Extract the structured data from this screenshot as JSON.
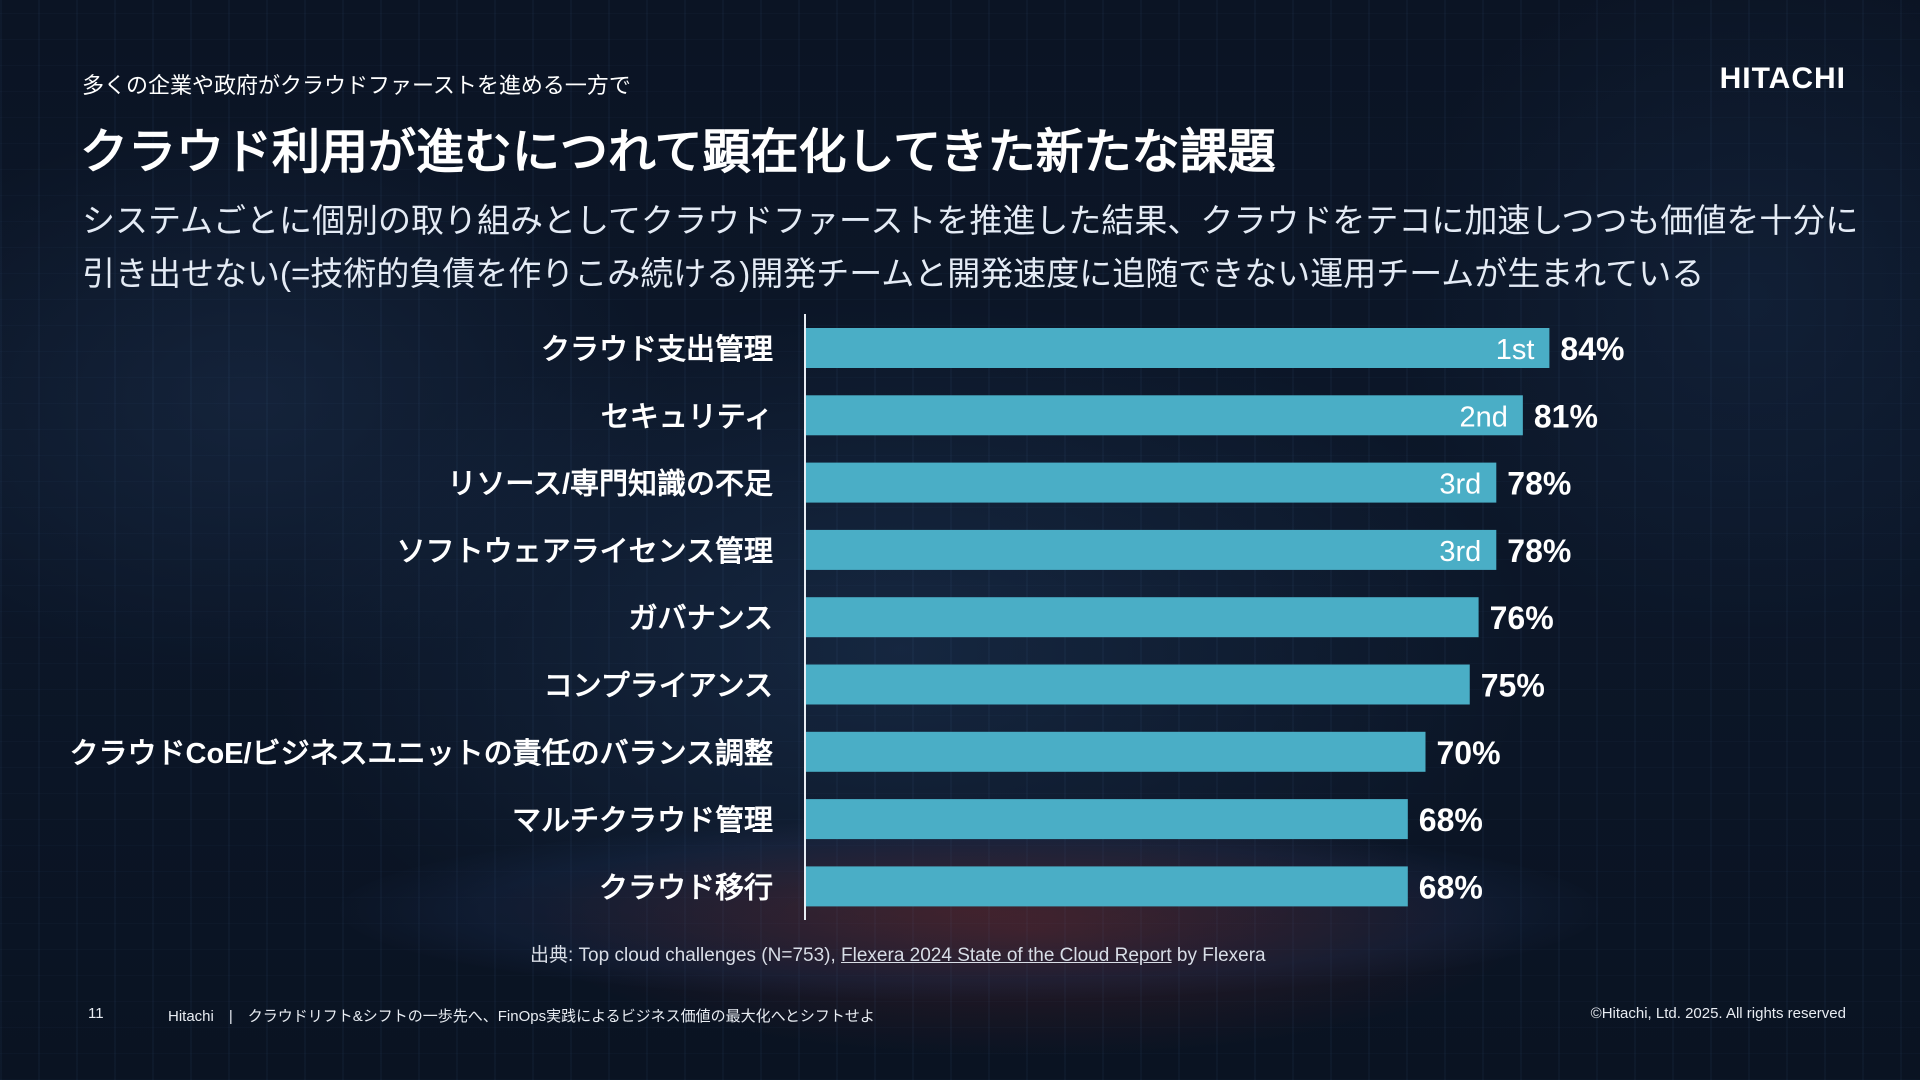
{
  "header": {
    "subtitle": "多くの企業や政府がクラウドファーストを進める一方で",
    "logo": "HITACHI",
    "title": "クラウド利用が進むにつれて顕在化してきた新たな課題",
    "description_lines": [
      "システムごとに個別の取り組みとしてクラウドファーストを推進した結果、クラウドをテコに加速しつつも価値を十分に",
      "引き出せない(=技術的負債を作りこみ続ける)開発チームと開発速度に追随できない運用チームが生まれている"
    ]
  },
  "chart_data": {
    "type": "bar",
    "orientation": "horizontal",
    "categories": [
      "クラウド支出管理",
      "セキュリティ",
      "リソース/専門知識の不足",
      "ソフトウェアライセンス管理",
      "ガバナンス",
      "コンプライアンス",
      "クラウドCoE/ビジネスユニットの責任のバランス調整",
      "マルチクラウド管理",
      "クラウド移行"
    ],
    "values": [
      84,
      81,
      78,
      78,
      76,
      75,
      70,
      68,
      68
    ],
    "value_labels": [
      "84%",
      "81%",
      "78%",
      "78%",
      "76%",
      "75%",
      "70%",
      "68%",
      "68%"
    ],
    "rank_labels": [
      "1st",
      "2nd",
      "3rd",
      "3rd",
      "",
      "",
      "",
      "",
      ""
    ],
    "unit": "%",
    "xlim": [
      0,
      100
    ],
    "bar_color": "#4aaec6"
  },
  "source": {
    "prefix": "出典: Top cloud challenges (N=753), ",
    "link": "Flexera 2024 State of the Cloud Report",
    "suffix": " by Flexera"
  },
  "footer": {
    "page_number": "11",
    "text": "Hitachi　|　クラウドリフト&シフトの一歩先へ、FinOps実践によるビジネス価値の最大化へとシフトせよ",
    "copyright": "©Hitachi, Ltd. 2025. All rights reserved"
  }
}
